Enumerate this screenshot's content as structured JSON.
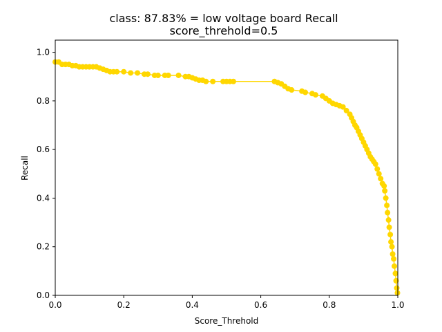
{
  "chart_data": {
    "type": "line",
    "title": "class: 87.83% = low voltage board Recall",
    "subtitle": "score_threhold=0.5",
    "xlabel": "Score_Threhold",
    "ylabel": "Recall",
    "xlim": [
      0.0,
      1.0
    ],
    "ylim": [
      0.0,
      1.05
    ],
    "xticks": [
      "0.0",
      "0.2",
      "0.4",
      "0.6",
      "0.8",
      "1.0"
    ],
    "yticks": [
      "0.0",
      "0.2",
      "0.4",
      "0.6",
      "0.8",
      "1.0"
    ],
    "grid": false,
    "legend": "none",
    "series": [
      {
        "color": "#ffd700",
        "marker": "circle",
        "x": [
          0.0,
          0.01,
          0.02,
          0.03,
          0.04,
          0.05,
          0.06,
          0.07,
          0.08,
          0.09,
          0.1,
          0.11,
          0.12,
          0.13,
          0.14,
          0.15,
          0.16,
          0.17,
          0.18,
          0.2,
          0.22,
          0.24,
          0.26,
          0.27,
          0.29,
          0.3,
          0.32,
          0.33,
          0.36,
          0.38,
          0.39,
          0.4,
          0.41,
          0.42,
          0.43,
          0.44,
          0.46,
          0.49,
          0.5,
          0.51,
          0.52,
          0.64,
          0.65,
          0.66,
          0.67,
          0.68,
          0.69,
          0.72,
          0.73,
          0.75,
          0.76,
          0.78,
          0.79,
          0.8,
          0.81,
          0.82,
          0.83,
          0.84,
          0.85,
          0.86,
          0.865,
          0.87,
          0.875,
          0.88,
          0.885,
          0.89,
          0.895,
          0.9,
          0.905,
          0.91,
          0.915,
          0.92,
          0.925,
          0.93,
          0.935,
          0.94,
          0.945,
          0.95,
          0.955,
          0.96,
          0.962,
          0.965,
          0.968,
          0.97,
          0.973,
          0.975,
          0.978,
          0.98,
          0.983,
          0.985,
          0.988,
          0.99,
          0.993,
          0.995,
          0.997,
          0.999
        ],
        "y": [
          0.96,
          0.96,
          0.95,
          0.95,
          0.95,
          0.945,
          0.945,
          0.94,
          0.94,
          0.94,
          0.94,
          0.94,
          0.94,
          0.935,
          0.93,
          0.925,
          0.92,
          0.92,
          0.92,
          0.92,
          0.915,
          0.915,
          0.91,
          0.91,
          0.905,
          0.905,
          0.905,
          0.905,
          0.905,
          0.9,
          0.9,
          0.895,
          0.89,
          0.885,
          0.885,
          0.88,
          0.88,
          0.88,
          0.88,
          0.88,
          0.88,
          0.88,
          0.875,
          0.87,
          0.86,
          0.85,
          0.845,
          0.84,
          0.835,
          0.83,
          0.825,
          0.82,
          0.81,
          0.8,
          0.79,
          0.785,
          0.78,
          0.775,
          0.76,
          0.745,
          0.73,
          0.715,
          0.7,
          0.69,
          0.675,
          0.66,
          0.645,
          0.63,
          0.615,
          0.6,
          0.585,
          0.57,
          0.56,
          0.55,
          0.54,
          0.52,
          0.5,
          0.48,
          0.46,
          0.45,
          0.43,
          0.4,
          0.37,
          0.34,
          0.31,
          0.28,
          0.25,
          0.22,
          0.2,
          0.17,
          0.15,
          0.12,
          0.09,
          0.06,
          0.03,
          0.01
        ]
      }
    ]
  }
}
